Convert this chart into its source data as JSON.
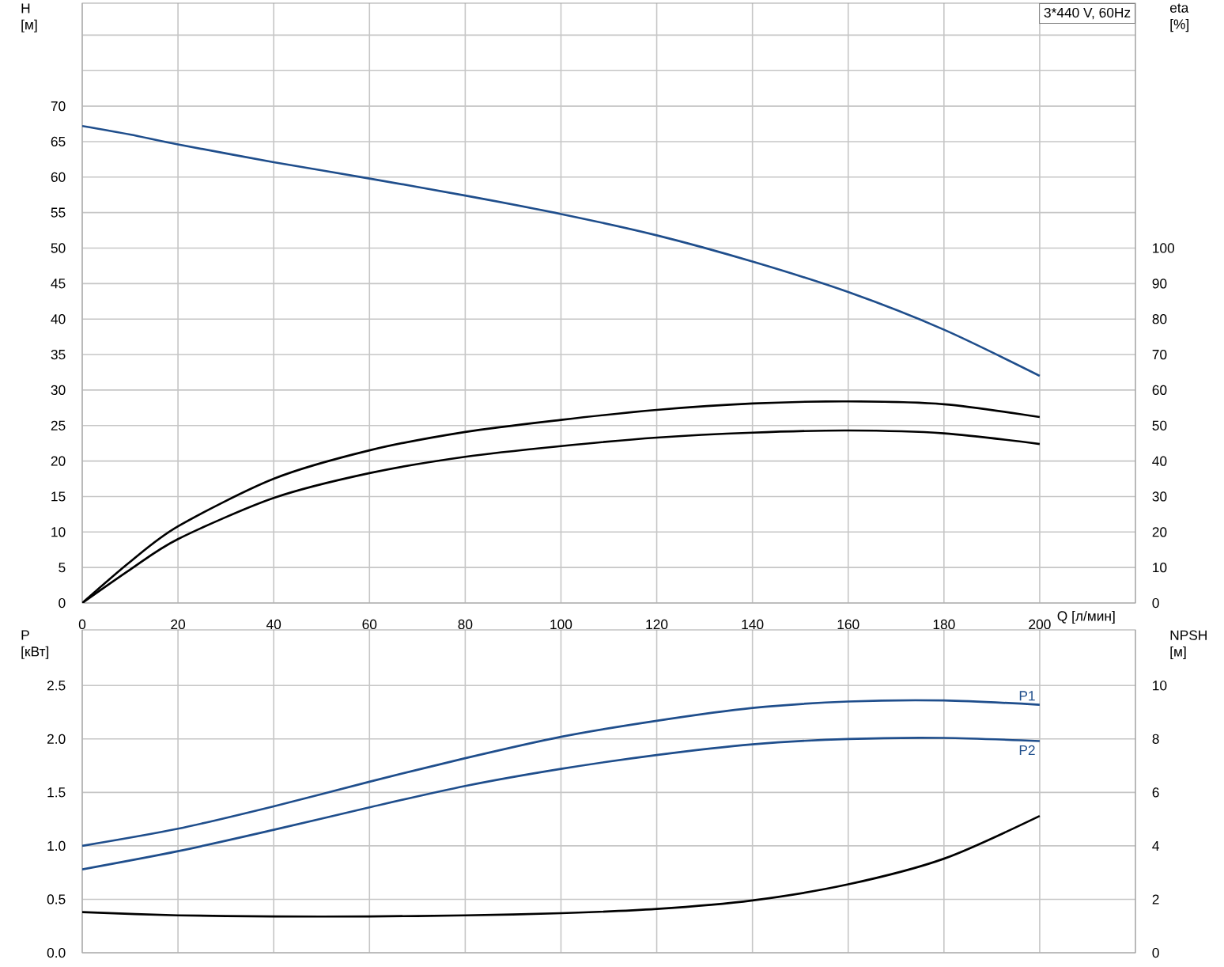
{
  "chart_data": [
    {
      "type": "line",
      "title": "3*440 V, 60Hz",
      "xlabel": "Q [л/мин]",
      "ylabel": "H [м]",
      "y2label": "eta [%]",
      "x": [
        0,
        10,
        20,
        40,
        60,
        80,
        100,
        120,
        140,
        160,
        180,
        200
      ],
      "xlim": [
        0,
        220
      ],
      "xticks": [
        0,
        20,
        40,
        60,
        80,
        100,
        120,
        140,
        160,
        180,
        200
      ],
      "ylim": [
        0,
        84.5
      ],
      "yticks": [
        0,
        5,
        10,
        15,
        20,
        25,
        30,
        35,
        40,
        45,
        50,
        55,
        60,
        65,
        70,
        {
          "value": 75,
          "label": null
        },
        {
          "value": 80,
          "label": null
        }
      ],
      "y2lim": [
        0,
        169
      ],
      "y2ticks": [
        0,
        10,
        20,
        30,
        40,
        50,
        60,
        70,
        80,
        90,
        100
      ],
      "grid": true,
      "marker": "none",
      "line_style": "solid",
      "series": [
        {
          "color": "#1f4e8c",
          "values": [
            67.2,
            66.0,
            64.6,
            62.1,
            59.8,
            57.4,
            54.8,
            51.8,
            48.1,
            43.8,
            38.5,
            32.0
          ]
        },
        {
          "color": "#000000",
          "axis": "y2",
          "values": [
            0,
            11.6,
            21.6,
            35,
            43,
            48.2,
            51.6,
            54.4,
            56.2,
            56.8,
            56,
            52.4
          ]
        },
        {
          "color": "#000000",
          "axis": "y2",
          "values": [
            0,
            9.4,
            18,
            29.6,
            36.6,
            41.2,
            44.2,
            46.6,
            48,
            48.6,
            47.8,
            44.8
          ]
        }
      ]
    },
    {
      "type": "line",
      "ylabel": "P [кВт]",
      "y2label": "NPSH [м]",
      "x": [
        0,
        20,
        40,
        60,
        80,
        100,
        120,
        140,
        160,
        180,
        200
      ],
      "xlim": [
        0,
        220
      ],
      "xticks": [
        0,
        20,
        40,
        60,
        80,
        100,
        120,
        140,
        160,
        180,
        200
      ],
      "ylim": [
        0,
        3.02
      ],
      "yticks": [
        {
          "value": 0,
          "label": "0.0"
        },
        0.5,
        {
          "value": 1,
          "label": "1.0"
        },
        1.5,
        {
          "value": 2,
          "label": "2.0"
        },
        2.5
      ],
      "y2lim": [
        0,
        12.08
      ],
      "y2ticks": [
        0,
        2,
        4,
        6,
        8,
        10
      ],
      "tick_labels": "y",
      "grid": true,
      "marker": "none",
      "line_style": "solid",
      "series": [
        {
          "name": "P1",
          "color": "#1f4e8c",
          "values": [
            1.0,
            1.16,
            1.37,
            1.6,
            1.82,
            2.02,
            2.17,
            2.29,
            2.35,
            2.36,
            2.32
          ]
        },
        {
          "name": "P2",
          "color": "#1f4e8c",
          "values": [
            0.78,
            0.95,
            1.15,
            1.36,
            1.56,
            1.72,
            1.85,
            1.95,
            2.0,
            2.01,
            1.98
          ]
        },
        {
          "color": "#000000",
          "axis": "y2",
          "values": [
            1.52,
            1.4,
            1.36,
            1.36,
            1.4,
            1.48,
            1.64,
            1.96,
            2.56,
            3.52,
            5.12
          ]
        }
      ]
    }
  ]
}
